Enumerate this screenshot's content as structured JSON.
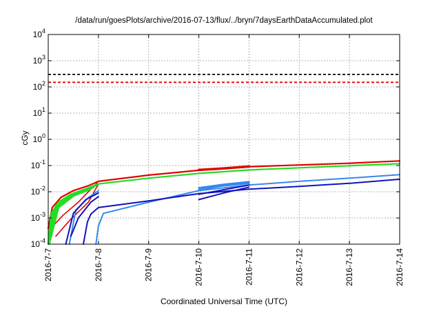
{
  "chart_data": {
    "type": "line",
    "title": "/data/run/goesPlots/archive/2016-07-13/flux/../bryn/7daysEarthDataAccumulated.plot",
    "xlabel": "Coordinated Universal Time (UTC)",
    "ylabel": "cGy",
    "y_scale": "log",
    "grid": true,
    "ylim": [
      0.0001,
      10000
    ],
    "xlim_days": [
      0,
      7
    ],
    "x_ticks": [
      "2016-7-7",
      "2016-7-8",
      "2016-7-9",
      "2016-7-10",
      "2016-7-11",
      "2016-7-12",
      "2016-7-13",
      "2016-7-14"
    ],
    "y_ticks": [
      {
        "base": "10",
        "exp": "-4",
        "value": 0.0001
      },
      {
        "base": "10",
        "exp": "-3",
        "value": 0.001
      },
      {
        "base": "10",
        "exp": "-2",
        "value": 0.01
      },
      {
        "base": "10",
        "exp": "-1",
        "value": 0.1
      },
      {
        "base": "10",
        "exp": "0",
        "value": 1
      },
      {
        "base": "10",
        "exp": "1",
        "value": 10
      },
      {
        "base": "10",
        "exp": "2",
        "value": 100
      },
      {
        "base": "10",
        "exp": "3",
        "value": 1000
      },
      {
        "base": "10",
        "exp": "4",
        "value": 10000
      }
    ],
    "reference_lines": [
      {
        "value": 300,
        "color": "#000000",
        "style": "dashed"
      },
      {
        "value": 150,
        "color": "#e00000",
        "style": "dashed"
      }
    ],
    "series": [
      {
        "color": "#e00000",
        "width": 2.2,
        "x": [
          0,
          0.08,
          0.25,
          0.5,
          0.8,
          1.0,
          2.0,
          3.0,
          4.0,
          5.0,
          6.0,
          7.0
        ],
        "y": [
          0.0004,
          0.0025,
          0.006,
          0.011,
          0.017,
          0.025,
          0.043,
          0.066,
          0.09,
          0.105,
          0.122,
          0.15
        ]
      },
      {
        "color": "#e00000",
        "width": 1.6,
        "x": [
          0.05,
          0.3,
          0.6,
          1.0
        ],
        "y": [
          0.0004,
          0.0013,
          0.004,
          0.025
        ]
      },
      {
        "color": "#e00000",
        "width": 1.6,
        "x": [
          0.15,
          0.45,
          0.8,
          1.0
        ],
        "y": [
          0.0002,
          0.0009,
          0.004,
          0.02
        ]
      },
      {
        "color": "#e00000",
        "width": 3.5,
        "x": [
          3.0,
          3.5,
          4.0
        ],
        "y": [
          0.068,
          0.078,
          0.092
        ]
      },
      {
        "color": "#22dd22",
        "width": 2.2,
        "x": [
          0,
          0.06,
          0.2,
          0.45,
          0.75,
          1.0,
          2.0,
          3.0,
          4.0,
          5.0,
          6.0,
          7.0
        ],
        "y": [
          0.0001,
          0.0015,
          0.004,
          0.008,
          0.013,
          0.02,
          0.033,
          0.05,
          0.068,
          0.082,
          0.098,
          0.118
        ]
      },
      {
        "color": "#22dd22",
        "width": 3.5,
        "x": [
          0.02,
          0.1,
          0.3,
          0.6,
          0.9
        ],
        "y": [
          0.00025,
          0.0018,
          0.005,
          0.009,
          0.015
        ]
      },
      {
        "color": "#22dd22",
        "width": 3.5,
        "x": [
          0.03,
          0.15,
          0.4,
          0.7,
          0.95
        ],
        "y": [
          0.0002,
          0.0022,
          0.006,
          0.011,
          0.018
        ]
      },
      {
        "color": "#22dd22",
        "width": 3.0,
        "x": [
          0.04,
          0.2,
          0.5,
          0.85
        ],
        "y": [
          0.00015,
          0.0025,
          0.007,
          0.013
        ]
      },
      {
        "color": "#22dd22",
        "width": 1.8,
        "x": [
          0.03,
          0.08
        ],
        "y": [
          0.0001,
          0.0009
        ]
      },
      {
        "color": "#3388ee",
        "width": 2.0,
        "x": [
          0.95,
          1.0,
          1.1,
          2.0,
          3.0,
          4.0,
          5.0,
          6.0,
          7.0
        ],
        "y": [
          0.0001,
          0.0005,
          0.0015,
          0.004,
          0.011,
          0.018,
          0.025,
          0.033,
          0.045
        ]
      },
      {
        "color": "#3388ee",
        "width": 2.0,
        "x": [
          0.42,
          0.55,
          0.8,
          1.0
        ],
        "y": [
          0.0001,
          0.002,
          0.006,
          0.011
        ]
      },
      {
        "color": "#3388ee",
        "width": 2.5,
        "x": [
          3.0,
          3.5,
          4.0
        ],
        "y": [
          0.014,
          0.019,
          0.024
        ]
      },
      {
        "color": "#3388ee",
        "width": 2.5,
        "x": [
          3.0,
          3.5,
          4.0
        ],
        "y": [
          0.012,
          0.017,
          0.021
        ]
      },
      {
        "color": "#1111bb",
        "width": 2.0,
        "x": [
          0.7,
          0.78,
          0.85,
          1.0,
          2.0,
          3.0,
          4.0,
          5.0,
          6.0,
          7.0
        ],
        "y": [
          0.0001,
          0.0007,
          0.0014,
          0.0025,
          0.0045,
          0.0085,
          0.0125,
          0.016,
          0.021,
          0.03
        ]
      },
      {
        "color": "#1111bb",
        "width": 2.0,
        "x": [
          0.35,
          0.5,
          0.75,
          1.0
        ],
        "y": [
          0.0001,
          0.0015,
          0.005,
          0.009
        ]
      },
      {
        "color": "#1111bb",
        "width": 2.0,
        "x": [
          0.45,
          0.6,
          0.85,
          1.0
        ],
        "y": [
          0.0002,
          0.001,
          0.004,
          0.0065
        ]
      },
      {
        "color": "#1111bb",
        "width": 2.0,
        "x": [
          3.0,
          3.5,
          4.0
        ],
        "y": [
          0.005,
          0.009,
          0.015
        ]
      },
      {
        "color": "#1111bb",
        "width": 2.0,
        "x": [
          3.0,
          3.5,
          4.0
        ],
        "y": [
          0.008,
          0.012,
          0.018
        ]
      }
    ]
  }
}
